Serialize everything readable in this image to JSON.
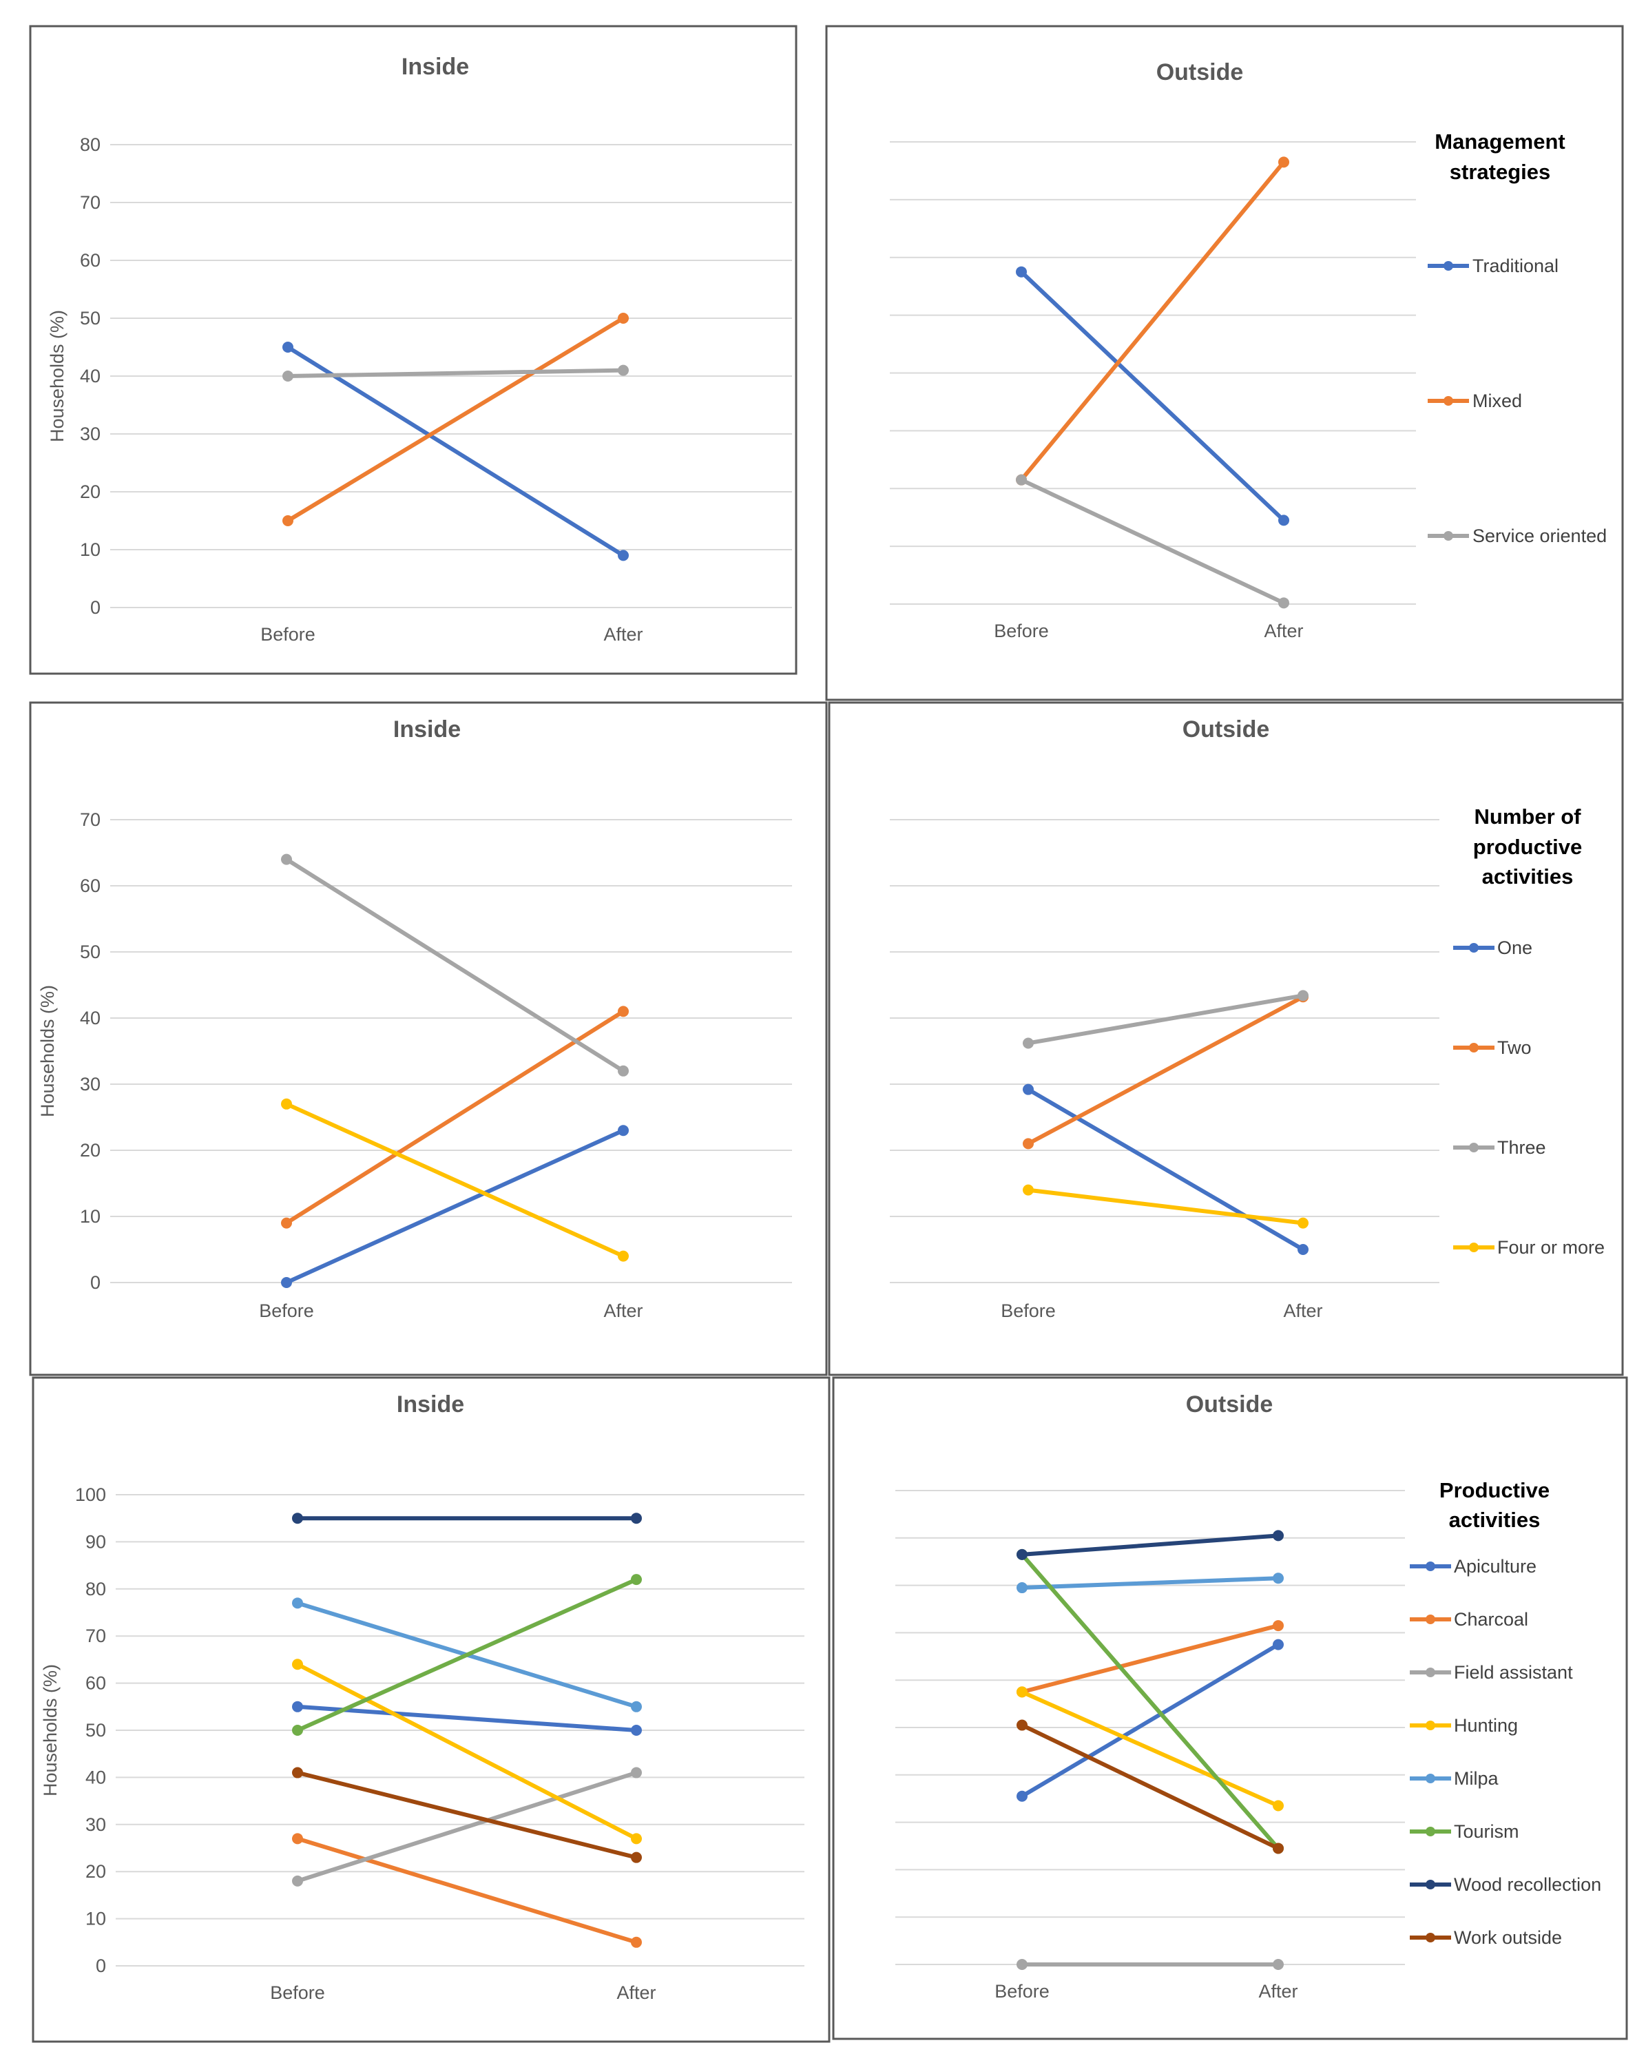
{
  "colors": {
    "blue": "#4472C4",
    "orange": "#ED7D31",
    "gray": "#A5A5A5",
    "gold": "#FFC000",
    "lightblue": "#5B9BD5",
    "green": "#70AD47",
    "navy": "#264478",
    "brown": "#9E480E",
    "grid": "#D9D9D9",
    "text": "#595959"
  },
  "chart_data": [
    {
      "type": "line",
      "title": "Inside",
      "ylabel": "Households (%)",
      "categories": [
        "Before",
        "After"
      ],
      "ylim": [
        0,
        80
      ],
      "ytick_step": 10,
      "show_yticks": true,
      "series": [
        {
          "name": "Traditional",
          "values": [
            45,
            9
          ],
          "color": "#4472C4"
        },
        {
          "name": "Mixed",
          "values": [
            15,
            50
          ],
          "color": "#ED7D31"
        },
        {
          "name": "Service oriented",
          "values": [
            40,
            41
          ],
          "color": "#A5A5A5"
        }
      ]
    },
    {
      "type": "line",
      "title": "Outside",
      "ylabel": "",
      "categories": [
        "Before",
        "After"
      ],
      "ylim": [
        0,
        80
      ],
      "ytick_step": 10,
      "show_yticks": false,
      "legend_title": "Management strategies",
      "series": [
        {
          "name": "Traditional",
          "values": [
            57.5,
            14.5
          ],
          "color": "#4472C4"
        },
        {
          "name": "Mixed",
          "values": [
            21.5,
            76.5
          ],
          "color": "#ED7D31"
        },
        {
          "name": "Service oriented",
          "values": [
            21.5,
            0.2
          ],
          "color": "#A5A5A5"
        }
      ]
    },
    {
      "type": "line",
      "title": "Inside",
      "ylabel": "Households (%)",
      "categories": [
        "Before",
        "After"
      ],
      "ylim": [
        0,
        70
      ],
      "ytick_step": 10,
      "show_yticks": true,
      "series": [
        {
          "name": "One",
          "values": [
            0,
            23
          ],
          "color": "#4472C4"
        },
        {
          "name": "Two",
          "values": [
            9,
            41
          ],
          "color": "#ED7D31"
        },
        {
          "name": "Three",
          "values": [
            64,
            32
          ],
          "color": "#A5A5A5"
        },
        {
          "name": "Four or more",
          "values": [
            27,
            4
          ],
          "color": "#FFC000"
        }
      ]
    },
    {
      "type": "line",
      "title": "Outside",
      "ylabel": "",
      "categories": [
        "Before",
        "After"
      ],
      "ylim": [
        0,
        70
      ],
      "ytick_step": 10,
      "show_yticks": false,
      "legend_title": "Number of productive activities",
      "series": [
        {
          "name": "One",
          "values": [
            29.2,
            5
          ],
          "color": "#4472C4"
        },
        {
          "name": "Two",
          "values": [
            21,
            43.2
          ],
          "color": "#ED7D31"
        },
        {
          "name": "Three",
          "values": [
            36.2,
            43.4
          ],
          "color": "#A5A5A5"
        },
        {
          "name": "Four or more",
          "values": [
            14,
            9
          ],
          "color": "#FFC000"
        }
      ]
    },
    {
      "type": "line",
      "title": "Inside",
      "ylabel": "Households (%)",
      "categories": [
        "Before",
        "After"
      ],
      "ylim": [
        0,
        100
      ],
      "ytick_step": 10,
      "show_yticks": true,
      "series": [
        {
          "name": "Apiculture",
          "values": [
            55,
            50
          ],
          "color": "#4472C4"
        },
        {
          "name": "Charcoal",
          "values": [
            27,
            5
          ],
          "color": "#ED7D31"
        },
        {
          "name": "Field assistant",
          "values": [
            18,
            41
          ],
          "color": "#A5A5A5"
        },
        {
          "name": "Hunting",
          "values": [
            64,
            27
          ],
          "color": "#FFC000"
        },
        {
          "name": "Milpa",
          "values": [
            77,
            55
          ],
          "color": "#5B9BD5"
        },
        {
          "name": "Tourism",
          "values": [
            50,
            82
          ],
          "color": "#70AD47"
        },
        {
          "name": "Wood recollection",
          "values": [
            95,
            95
          ],
          "color": "#264478"
        },
        {
          "name": "Work outside",
          "values": [
            41,
            23
          ],
          "color": "#9E480E"
        }
      ]
    },
    {
      "type": "line",
      "title": "Outside",
      "ylabel": "",
      "categories": [
        "Before",
        "After"
      ],
      "ylim": [
        0,
        100
      ],
      "ytick_step": 10,
      "show_yticks": false,
      "legend_title": "Productive activities",
      "series": [
        {
          "name": "Apiculture",
          "values": [
            35.5,
            67.5
          ],
          "color": "#4472C4"
        },
        {
          "name": "Charcoal",
          "values": [
            57.5,
            71.5
          ],
          "color": "#ED7D31"
        },
        {
          "name": "Field assistant",
          "values": [
            0,
            0
          ],
          "color": "#A5A5A5"
        },
        {
          "name": "Hunting",
          "values": [
            57.5,
            33.5
          ],
          "color": "#FFC000"
        },
        {
          "name": "Milpa",
          "values": [
            79.5,
            81.5
          ],
          "color": "#5B9BD5"
        },
        {
          "name": "Tourism",
          "values": [
            86.5,
            24.5
          ],
          "color": "#70AD47"
        },
        {
          "name": "Wood recollection",
          "values": [
            86.5,
            90.5
          ],
          "color": "#264478"
        },
        {
          "name": "Work outside",
          "values": [
            50.5,
            24.5
          ],
          "color": "#9E480E"
        }
      ]
    }
  ]
}
